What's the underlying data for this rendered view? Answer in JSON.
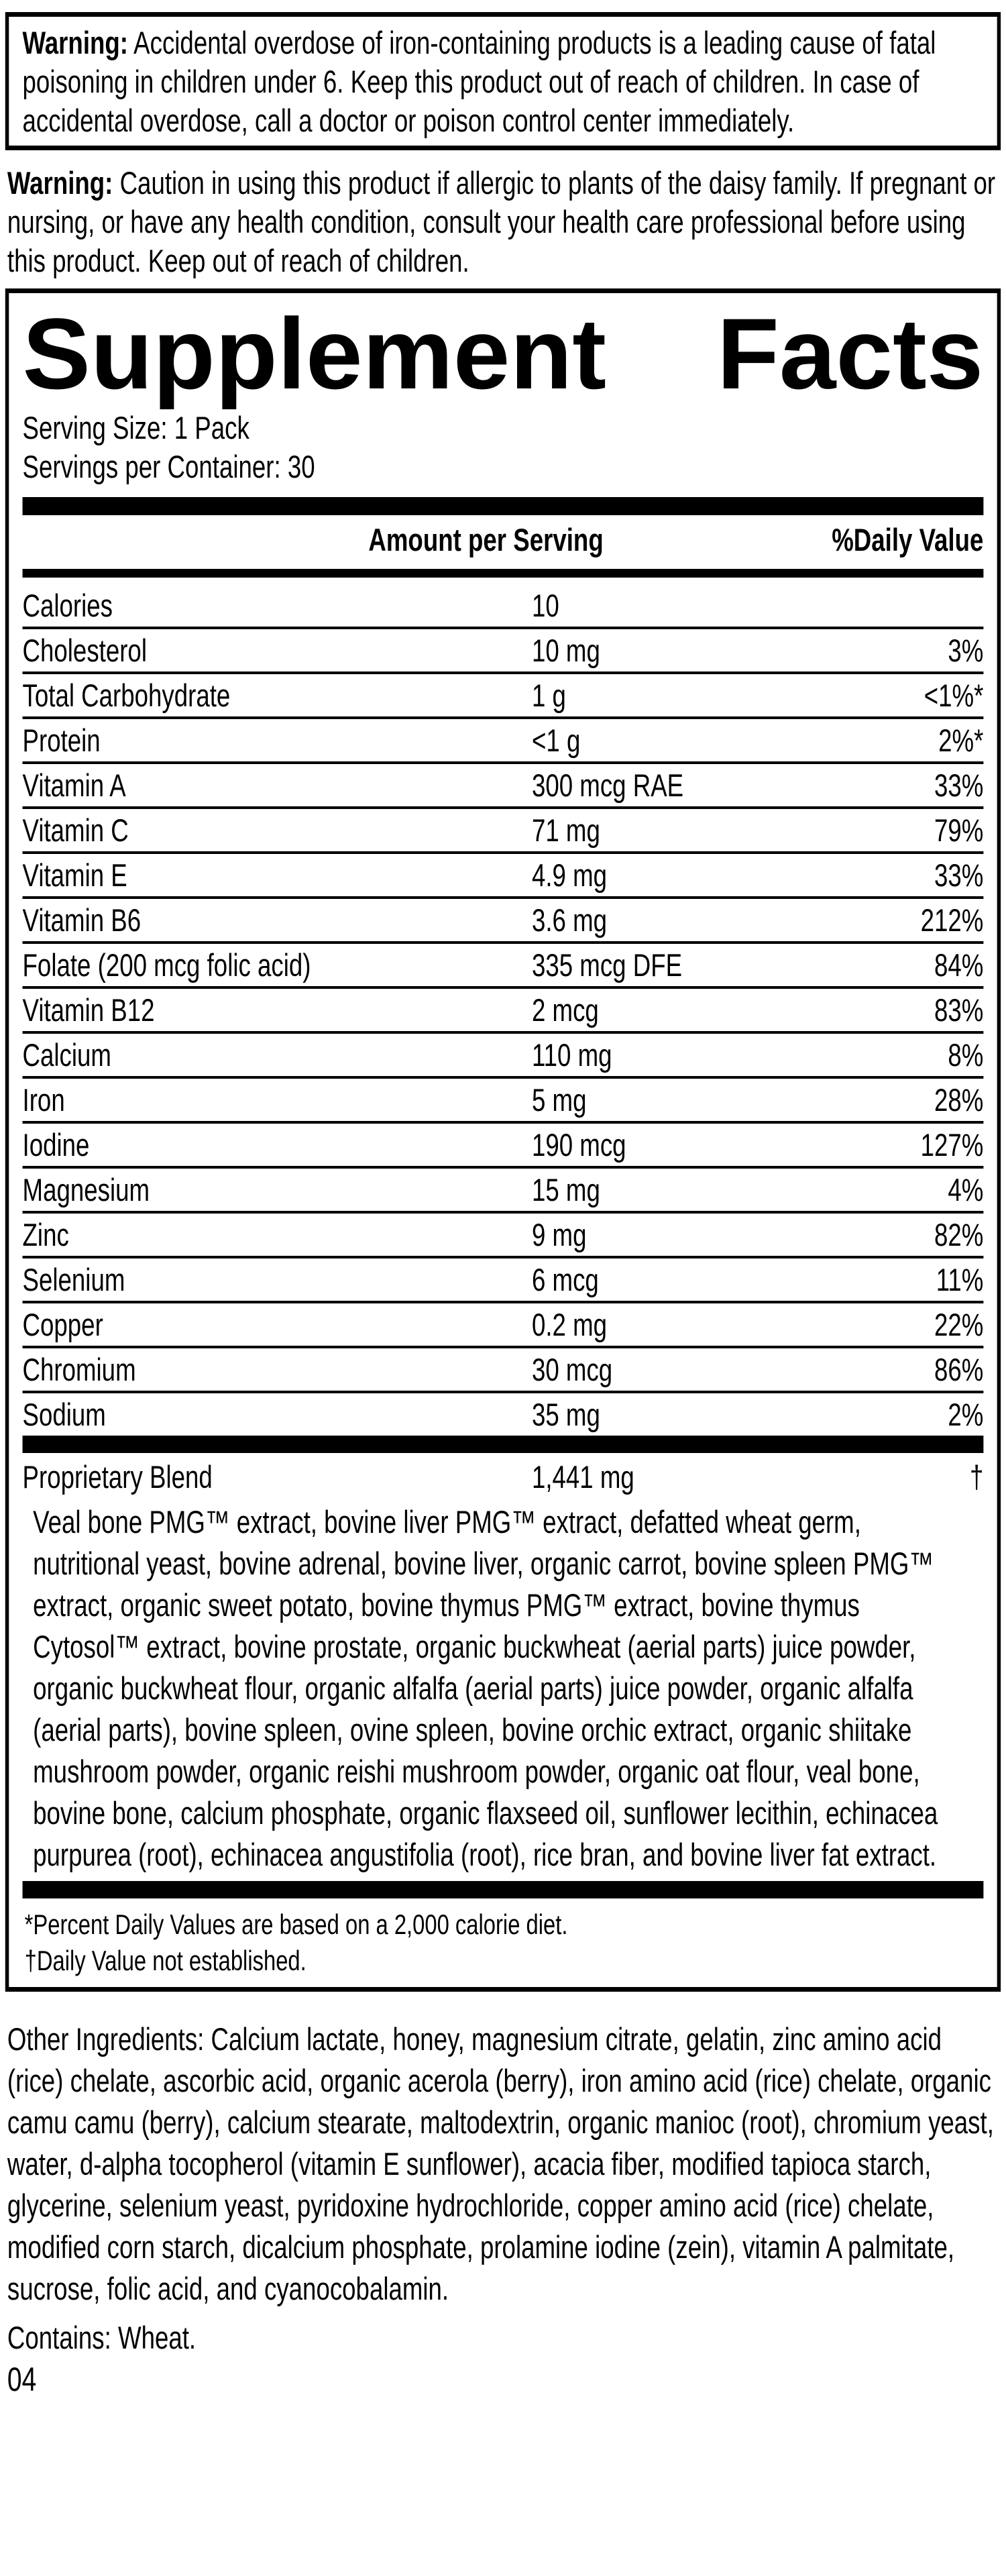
{
  "warning_iron": {
    "label": "Warning:",
    "text": "Accidental overdose of iron-containing products is a leading cause of fatal poisoning in children under 6. Keep this product out of reach of children. In case of accidental overdose, call a doctor or poison control center immediately."
  },
  "warning_daisy": {
    "label": "Warning:",
    "text": "Caution in using this product if allergic to plants of the daisy family. If pregnant or nursing, or have any health condition, consult your health care professional before using this product. Keep out of reach of children."
  },
  "supplement_facts": {
    "title": {
      "word1": "Supplement",
      "word2": "Facts"
    },
    "serving_size": "Serving Size: 1 Pack",
    "servings_per_container": "Servings per Container: 30",
    "columns": {
      "amount": "Amount per Serving",
      "daily_value": "%Daily Value"
    },
    "rows": [
      {
        "name": "Calories",
        "amount": "10",
        "dv": ""
      },
      {
        "name": "Cholesterol",
        "amount": "10 mg",
        "dv": "3%"
      },
      {
        "name": "Total Carbohydrate",
        "amount": "1 g",
        "dv": "<1%*"
      },
      {
        "name": "Protein",
        "amount": "<1 g",
        "dv": "2%*"
      },
      {
        "name": "Vitamin A",
        "amount": "300 mcg RAE",
        "dv": "33%"
      },
      {
        "name": "Vitamin C",
        "amount": "71 mg",
        "dv": "79%"
      },
      {
        "name": "Vitamin E",
        "amount": "4.9 mg",
        "dv": "33%"
      },
      {
        "name": "Vitamin B6",
        "amount": "3.6 mg",
        "dv": "212%"
      },
      {
        "name": "Folate (200 mcg folic acid)",
        "amount": "335 mcg DFE",
        "dv": "84%"
      },
      {
        "name": "Vitamin B12",
        "amount": "2 mcg",
        "dv": "83%"
      },
      {
        "name": "Calcium",
        "amount": "110 mg",
        "dv": "8%"
      },
      {
        "name": "Iron",
        "amount": "5 mg",
        "dv": "28%"
      },
      {
        "name": "Iodine",
        "amount": "190 mcg",
        "dv": "127%"
      },
      {
        "name": "Magnesium",
        "amount": "15 mg",
        "dv": "4%"
      },
      {
        "name": "Zinc",
        "amount": "9 mg",
        "dv": "82%"
      },
      {
        "name": "Selenium",
        "amount": "6 mcg",
        "dv": "11%"
      },
      {
        "name": "Copper",
        "amount": "0.2 mg",
        "dv": "22%"
      },
      {
        "name": "Chromium",
        "amount": "30 mcg",
        "dv": "86%"
      },
      {
        "name": "Sodium",
        "amount": "35 mg",
        "dv": "2%"
      }
    ],
    "proprietary_blend": {
      "name": "Proprietary Blend",
      "amount": "1,441 mg",
      "dv": "†",
      "description": "Veal bone PMG™ extract, bovine liver PMG™ extract, defatted wheat germ, nutritional yeast, bovine adrenal, bovine liver, organic carrot, bovine spleen PMG™ extract, organic sweet potato, bovine thymus PMG™ extract, bovine thymus Cytosol™ extract, bovine prostate, organic buckwheat (aerial parts) juice powder, organic buckwheat flour, organic alfalfa (aerial parts) juice powder, organic alfalfa (aerial parts), bovine spleen, ovine spleen, bovine orchic extract, organic shiitake mushroom powder, organic reishi mushroom powder, organic oat flour, veal bone, bovine bone, calcium phosphate, organic flaxseed oil, sunflower lecithin, echinacea purpurea (root), echinacea angustifolia (root), rice bran, and bovine liver fat extract."
    },
    "footnotes": [
      "*Percent Daily Values are based on a 2,000 calorie diet.",
      "†Daily Value not established."
    ]
  },
  "other_ingredients": "Other Ingredients: Calcium lactate, honey, magnesium citrate, gelatin, zinc amino acid (rice) chelate, ascorbic acid, organic acerola (berry), iron amino acid (rice) chelate, organic camu camu (berry), calcium stearate, maltodextrin, organic manioc (root), chromium yeast, water, d-alpha tocopherol (vitamin E sunflower), acacia fiber, modified tapioca starch, glycerine, selenium yeast, pyridoxine hydrochloride, copper amino acid (rice) chelate, modified corn starch, dicalcium phosphate, prolamine iodine (zein), vitamin A palmitate, sucrose, folic acid, and cyanocobalamin.",
  "contains": "Contains: Wheat.",
  "code": "04"
}
